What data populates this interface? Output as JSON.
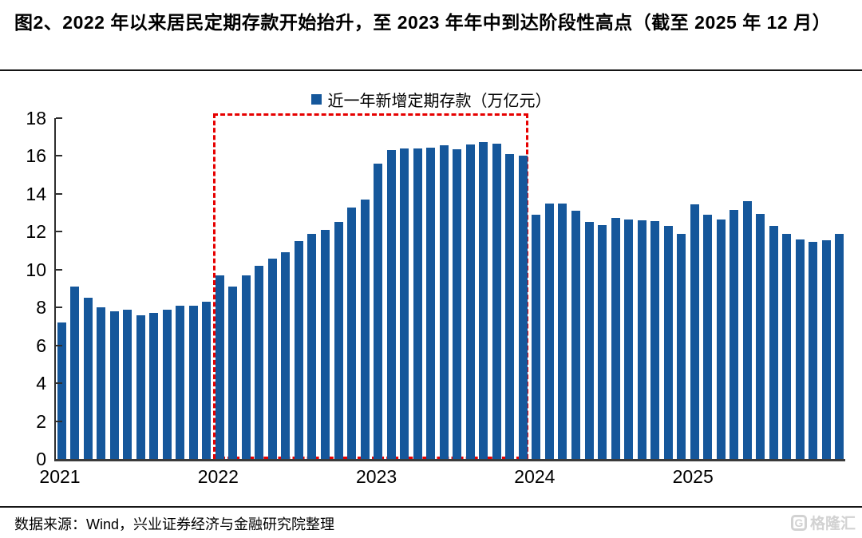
{
  "title": "图2、2022 年以来居民定期存款开始抬升，至 2023 年年中到达阶段性高点（截至 2025 年 12 月）",
  "footer": {
    "source": "数据来源：Wind，兴业证券经济与金融研究院整理"
  },
  "logo": {
    "monogram": "G",
    "text": "格隆汇"
  },
  "colors": {
    "bar": "#15579b",
    "highlight_box": "#e60000",
    "axis": "#2e2e2e",
    "text": "#000000"
  },
  "chart_data": {
    "type": "bar",
    "title": "",
    "legend": "近一年新增定期存款（万亿元）",
    "legend_position": "top-center",
    "xlabel": "",
    "ylabel": "",
    "ylim": [
      0,
      18
    ],
    "yticks": [
      0,
      2,
      4,
      6,
      8,
      10,
      12,
      14,
      16,
      18
    ],
    "grid": false,
    "x_tick_labels": [
      "2021",
      "2022",
      "2023",
      "2024",
      "2025"
    ],
    "x_tick_indices": [
      0,
      12,
      24,
      36,
      48
    ],
    "highlight_region": {
      "start": "2022-01",
      "end": "2023-12",
      "style": "red-dashed-box"
    },
    "x": [
      "2021-01",
      "2021-02",
      "2021-03",
      "2021-04",
      "2021-05",
      "2021-06",
      "2021-07",
      "2021-08",
      "2021-09",
      "2021-10",
      "2021-11",
      "2021-12",
      "2022-01",
      "2022-02",
      "2022-03",
      "2022-04",
      "2022-05",
      "2022-06",
      "2022-07",
      "2022-08",
      "2022-09",
      "2022-10",
      "2022-11",
      "2022-12",
      "2023-01",
      "2023-02",
      "2023-03",
      "2023-04",
      "2023-05",
      "2023-06",
      "2023-07",
      "2023-08",
      "2023-09",
      "2023-10",
      "2023-11",
      "2023-12",
      "2024-01",
      "2024-02",
      "2024-03",
      "2024-04",
      "2024-05",
      "2024-06",
      "2024-07",
      "2024-08",
      "2024-09",
      "2024-10",
      "2024-11",
      "2024-12",
      "2025-01",
      "2025-02",
      "2025-03",
      "2025-04",
      "2025-05",
      "2025-06",
      "2025-07",
      "2025-08",
      "2025-09",
      "2025-10",
      "2025-11",
      "2025-12"
    ],
    "series": [
      {
        "name": "近一年新增定期存款（万亿元）",
        "values": [
          7.2,
          9.1,
          8.5,
          8.0,
          7.8,
          7.9,
          7.6,
          7.7,
          7.9,
          8.1,
          8.1,
          8.3,
          9.7,
          9.1,
          9.7,
          10.2,
          10.6,
          10.9,
          11.5,
          11.9,
          12.1,
          12.5,
          13.3,
          13.7,
          15.6,
          16.3,
          16.4,
          16.4,
          16.45,
          16.55,
          16.35,
          16.6,
          16.75,
          16.65,
          16.1,
          16.0,
          12.9,
          13.5,
          13.5,
          13.1,
          12.5,
          12.35,
          12.75,
          12.65,
          12.6,
          12.55,
          12.3,
          11.9,
          13.45,
          12.9,
          12.65,
          13.15,
          13.6,
          12.95,
          12.3,
          11.9,
          11.6,
          11.45,
          11.55,
          11.9
        ]
      }
    ]
  }
}
